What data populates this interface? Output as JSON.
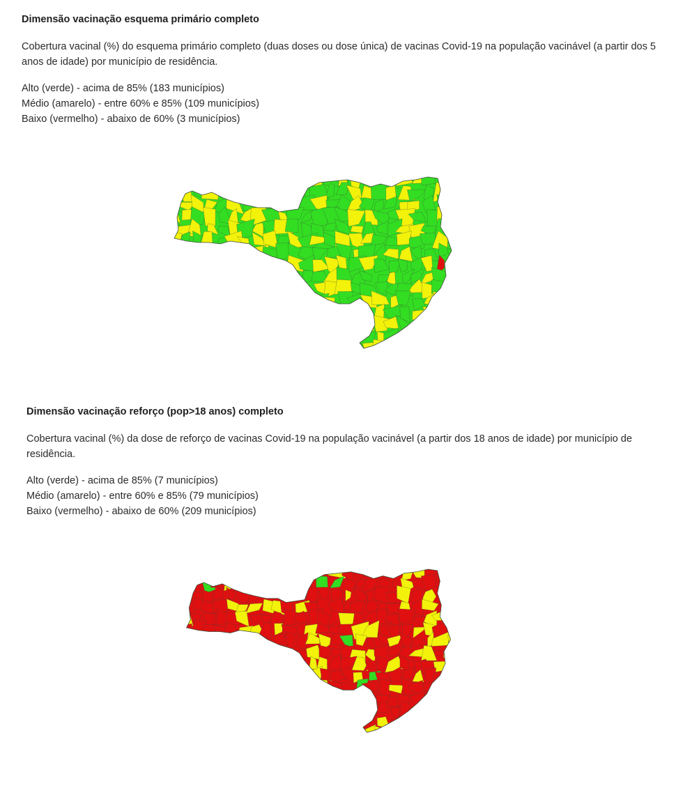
{
  "sections": [
    {
      "title": "Dimensão vacinação esquema primário completo",
      "description": "Cobertura vacinal (%)  do esquema primário completo (duas doses ou dose única) de vacinas Covid-19 na população vacinável (a partir dos 5 anos de idade) por município de residência.",
      "legend": [
        {
          "text": "Alto (verde) - acima de 85% (183 municípios)",
          "color": "#33dd22",
          "count": 183
        },
        {
          "text": "Médio (amarelo) - entre 60% e 85% (109 municípios)",
          "color": "#f2f20a",
          "count": 109
        },
        {
          "text": "Baixo (vermelho) - abaixo de 60% (3 municípios)",
          "color": "#e01010",
          "count": 3
        }
      ],
      "map": {
        "base_color": "#33dd22",
        "secondary_color": "#f2f20a",
        "accent_color": "#e01010",
        "icon": "santa-catarina-choropleth-map"
      }
    },
    {
      "title": "Dimensão vacinação reforço (pop>18 anos) completo",
      "description": "Cobertura vacinal (%) da dose de reforço de vacinas Covid-19 na população vacinável (a partir dos 18 anos de idade) por município de residência.",
      "legend": [
        {
          "text": "Alto (verde) - acima de 85% (7 municípios)",
          "color": "#33dd22",
          "count": 7
        },
        {
          "text": "Médio (amarelo) - entre 60% e 85% (79 municípios)",
          "color": "#f2f20a",
          "count": 79
        },
        {
          "text": "Baixo (vermelho) - abaixo de 60% (209 municípios)",
          "color": "#e01010",
          "count": 209
        }
      ],
      "map": {
        "base_color": "#e01010",
        "secondary_color": "#f2f20a",
        "accent_color": "#33dd22",
        "icon": "santa-catarina-choropleth-map"
      }
    }
  ]
}
